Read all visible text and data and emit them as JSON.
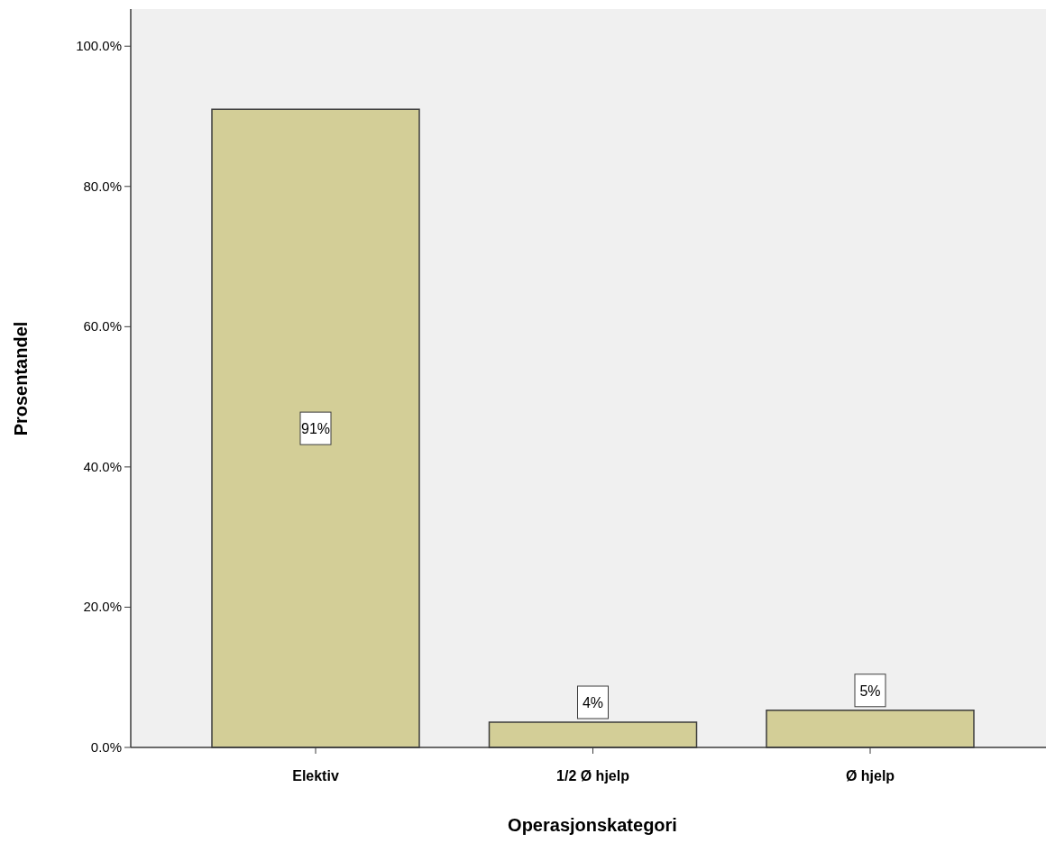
{
  "chart_data": {
    "type": "bar",
    "xlabel": "Operasjonskategori",
    "ylabel": "Prosentandel",
    "categories": [
      "Elektiv",
      "1/2 Ø hjelp",
      "Ø hjelp"
    ],
    "values": [
      91.0,
      3.6,
      5.3
    ],
    "color": "#d3ce97",
    "value_labels": [
      "91%",
      "4%",
      "5%"
    ],
    "ylim": [
      0,
      105.3
    ],
    "yticks": [
      {
        "value": 0,
        "label": "0.0%"
      },
      {
        "value": 20,
        "label": "20.0%"
      },
      {
        "value": 40,
        "label": "40.0%"
      },
      {
        "value": 60,
        "label": "60.0%"
      },
      {
        "value": 80,
        "label": "80.0%"
      },
      {
        "value": 100,
        "label": "100.0%"
      }
    ],
    "grid": false
  }
}
